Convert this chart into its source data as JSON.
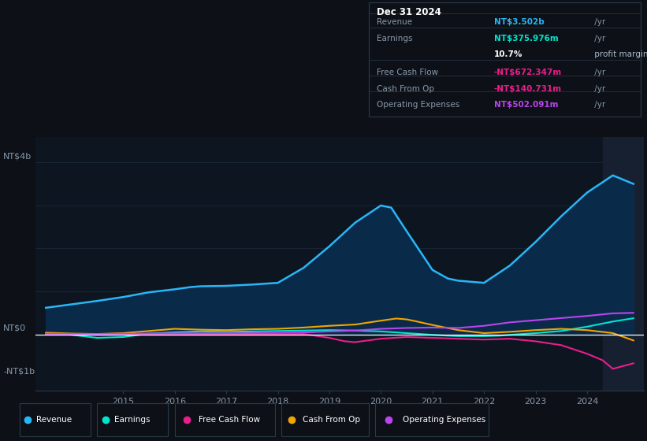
{
  "background_color": "#0d1117",
  "plot_bg_color": "#0d1520",
  "grid_color": "#1e2d3d",
  "zero_line_color": "#ffffff",
  "shaded_recent_color": "#162030",
  "ylim": [
    -1300000000,
    4600000000
  ],
  "x_min": 2013.3,
  "x_max": 2025.1,
  "xlabel_years": [
    2015,
    2016,
    2017,
    2018,
    2019,
    2020,
    2021,
    2022,
    2023,
    2024
  ],
  "revenue": {
    "label": "Revenue",
    "color": "#29b6f6",
    "fill_color": "#0a2a4a",
    "x": [
      2013.5,
      2014.0,
      2014.5,
      2015.0,
      2015.5,
      2016.0,
      2016.3,
      2016.5,
      2017.0,
      2017.5,
      2018.0,
      2018.5,
      2019.0,
      2019.5,
      2020.0,
      2020.2,
      2020.5,
      2021.0,
      2021.3,
      2021.5,
      2022.0,
      2022.5,
      2023.0,
      2023.5,
      2024.0,
      2024.5,
      2024.9
    ],
    "y": [
      620000000,
      700000000,
      780000000,
      870000000,
      980000000,
      1050000000,
      1100000000,
      1120000000,
      1130000000,
      1160000000,
      1200000000,
      1550000000,
      2050000000,
      2600000000,
      3000000000,
      2950000000,
      2400000000,
      1500000000,
      1300000000,
      1250000000,
      1200000000,
      1600000000,
      2150000000,
      2750000000,
      3300000000,
      3700000000,
      3502000000
    ]
  },
  "earnings": {
    "label": "Earnings",
    "color": "#00e5cc",
    "x": [
      2013.5,
      2014.0,
      2014.5,
      2015.0,
      2015.5,
      2016.0,
      2016.5,
      2017.0,
      2017.5,
      2018.0,
      2018.5,
      2019.0,
      2019.5,
      2020.0,
      2020.5,
      2021.0,
      2021.3,
      2021.5,
      2022.0,
      2022.3,
      2022.5,
      2023.0,
      2023.5,
      2024.0,
      2024.5,
      2024.9
    ],
    "y": [
      20000000,
      -10000000,
      -80000000,
      -60000000,
      20000000,
      50000000,
      70000000,
      60000000,
      70000000,
      80000000,
      90000000,
      100000000,
      90000000,
      70000000,
      30000000,
      -10000000,
      -30000000,
      -40000000,
      -40000000,
      -30000000,
      -10000000,
      30000000,
      80000000,
      180000000,
      300000000,
      375976000
    ]
  },
  "free_cash_flow": {
    "label": "Free Cash Flow",
    "color": "#e91e8c",
    "x": [
      2013.5,
      2014.0,
      2014.5,
      2015.0,
      2015.5,
      2016.0,
      2016.5,
      2017.0,
      2017.5,
      2018.0,
      2018.5,
      2019.0,
      2019.3,
      2019.5,
      2020.0,
      2020.5,
      2021.0,
      2021.5,
      2022.0,
      2022.5,
      2023.0,
      2023.5,
      2024.0,
      2024.3,
      2024.5,
      2024.9
    ],
    "y": [
      5000000,
      0,
      -5000000,
      0,
      10000000,
      15000000,
      10000000,
      5000000,
      10000000,
      5000000,
      10000000,
      -80000000,
      -160000000,
      -180000000,
      -100000000,
      -60000000,
      -80000000,
      -100000000,
      -120000000,
      -100000000,
      -160000000,
      -250000000,
      -450000000,
      -600000000,
      -800000000,
      -672347000
    ]
  },
  "cash_from_op": {
    "label": "Cash From Op",
    "color": "#f0a500",
    "x": [
      2013.5,
      2014.0,
      2014.5,
      2015.0,
      2015.5,
      2016.0,
      2016.5,
      2017.0,
      2017.5,
      2018.0,
      2018.5,
      2019.0,
      2019.5,
      2020.0,
      2020.3,
      2020.5,
      2020.7,
      2021.0,
      2021.5,
      2022.0,
      2022.5,
      2023.0,
      2023.5,
      2024.0,
      2024.5,
      2024.9
    ],
    "y": [
      40000000,
      20000000,
      10000000,
      30000000,
      80000000,
      130000000,
      110000000,
      100000000,
      120000000,
      130000000,
      160000000,
      200000000,
      230000000,
      320000000,
      370000000,
      350000000,
      300000000,
      220000000,
      100000000,
      30000000,
      60000000,
      100000000,
      130000000,
      100000000,
      30000000,
      -140731000
    ]
  },
  "operating_expenses": {
    "label": "Operating Expenses",
    "color": "#bb44ee",
    "x": [
      2013.5,
      2014.0,
      2014.5,
      2015.0,
      2015.5,
      2016.0,
      2016.5,
      2017.0,
      2017.5,
      2018.0,
      2018.5,
      2019.0,
      2019.5,
      2020.0,
      2020.5,
      2021.0,
      2021.5,
      2022.0,
      2022.5,
      2023.0,
      2023.5,
      2024.0,
      2024.5,
      2024.9
    ],
    "y": [
      15000000,
      10000000,
      10000000,
      15000000,
      20000000,
      25000000,
      25000000,
      25000000,
      30000000,
      35000000,
      45000000,
      70000000,
      90000000,
      130000000,
      150000000,
      160000000,
      150000000,
      200000000,
      280000000,
      330000000,
      380000000,
      430000000,
      490000000,
      502091000
    ]
  },
  "shaded_x_start": 2024.3,
  "info_box": {
    "date": "Dec 31 2024",
    "rows": [
      {
        "label": "Revenue",
        "value": "NT$3.502b",
        "color": "#29b6f6",
        "suffix": " /yr"
      },
      {
        "label": "Earnings",
        "value": "NT$375.976m",
        "color": "#00e5cc",
        "suffix": " /yr"
      },
      {
        "label": "",
        "value": "10.7%",
        "color": "#ffffff",
        "suffix": " profit margin",
        "suffix_color": "#aabbcc"
      },
      {
        "label": "Free Cash Flow",
        "value": "-NT$672.347m",
        "color": "#e91e8c",
        "suffix": " /yr"
      },
      {
        "label": "Cash From Op",
        "value": "-NT$140.731m",
        "color": "#e91e8c",
        "suffix": " /yr"
      },
      {
        "label": "Operating Expenses",
        "value": "NT$502.091m",
        "color": "#bb44ee",
        "suffix": " /yr"
      }
    ]
  },
  "legend_items": [
    {
      "label": "Revenue",
      "color": "#29b6f6"
    },
    {
      "label": "Earnings",
      "color": "#00e5cc"
    },
    {
      "label": "Free Cash Flow",
      "color": "#e91e8c"
    },
    {
      "label": "Cash From Op",
      "color": "#f0a500"
    },
    {
      "label": "Operating Expenses",
      "color": "#bb44ee"
    }
  ]
}
